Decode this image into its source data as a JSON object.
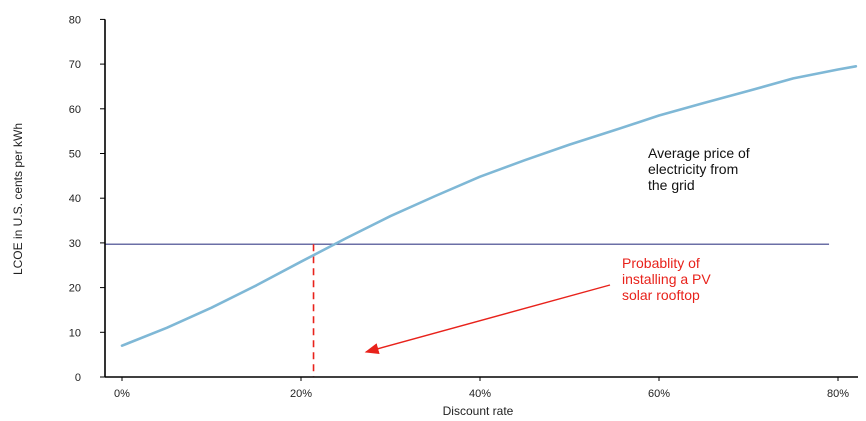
{
  "chart_data": {
    "type": "line",
    "xlabel": "Discount rate",
    "ylabel": "LCOE in U.S. cents per kWh",
    "xlim": [
      0,
      0.82
    ],
    "ylim": [
      0,
      80
    ],
    "x_ticks": [
      {
        "value": 0,
        "label": "0%"
      },
      {
        "value": 0.2,
        "label": "20%"
      },
      {
        "value": 0.4,
        "label": "40%"
      },
      {
        "value": 0.6,
        "label": "60%"
      },
      {
        "value": 0.8,
        "label": "80%"
      }
    ],
    "y_ticks": [
      0,
      10,
      20,
      30,
      40,
      50,
      60,
      70,
      80
    ],
    "grid": false,
    "series": [
      {
        "color": "#7fb8d6",
        "x": [
          0,
          0.05,
          0.1,
          0.15,
          0.2,
          0.25,
          0.3,
          0.35,
          0.4,
          0.45,
          0.5,
          0.55,
          0.6,
          0.65,
          0.7,
          0.75,
          0.8,
          0.82
        ],
        "y": [
          7,
          11,
          15.5,
          20.5,
          25.8,
          31,
          36,
          40.5,
          44.8,
          48.5,
          52,
          55.2,
          58.5,
          61.3,
          64,
          66.8,
          68.8,
          69.5
        ]
      }
    ],
    "reference_lines": [
      {
        "orientation": "horizontal",
        "value": 29.7,
        "x_end": 0.79,
        "color": "#6b6fa6",
        "style": "solid"
      },
      {
        "orientation": "vertical",
        "value": 0.214,
        "y_end": 29.7,
        "color": "#e8221b",
        "style": "dashed"
      }
    ],
    "annotations": [
      {
        "lines": [
          "Average price of",
          "electricity from",
          "the grid"
        ],
        "color": "#111111"
      },
      {
        "lines": [
          "Probablity of",
          "installing  a PV",
          "solar rooftop"
        ],
        "color": "#e8221b"
      }
    ]
  }
}
